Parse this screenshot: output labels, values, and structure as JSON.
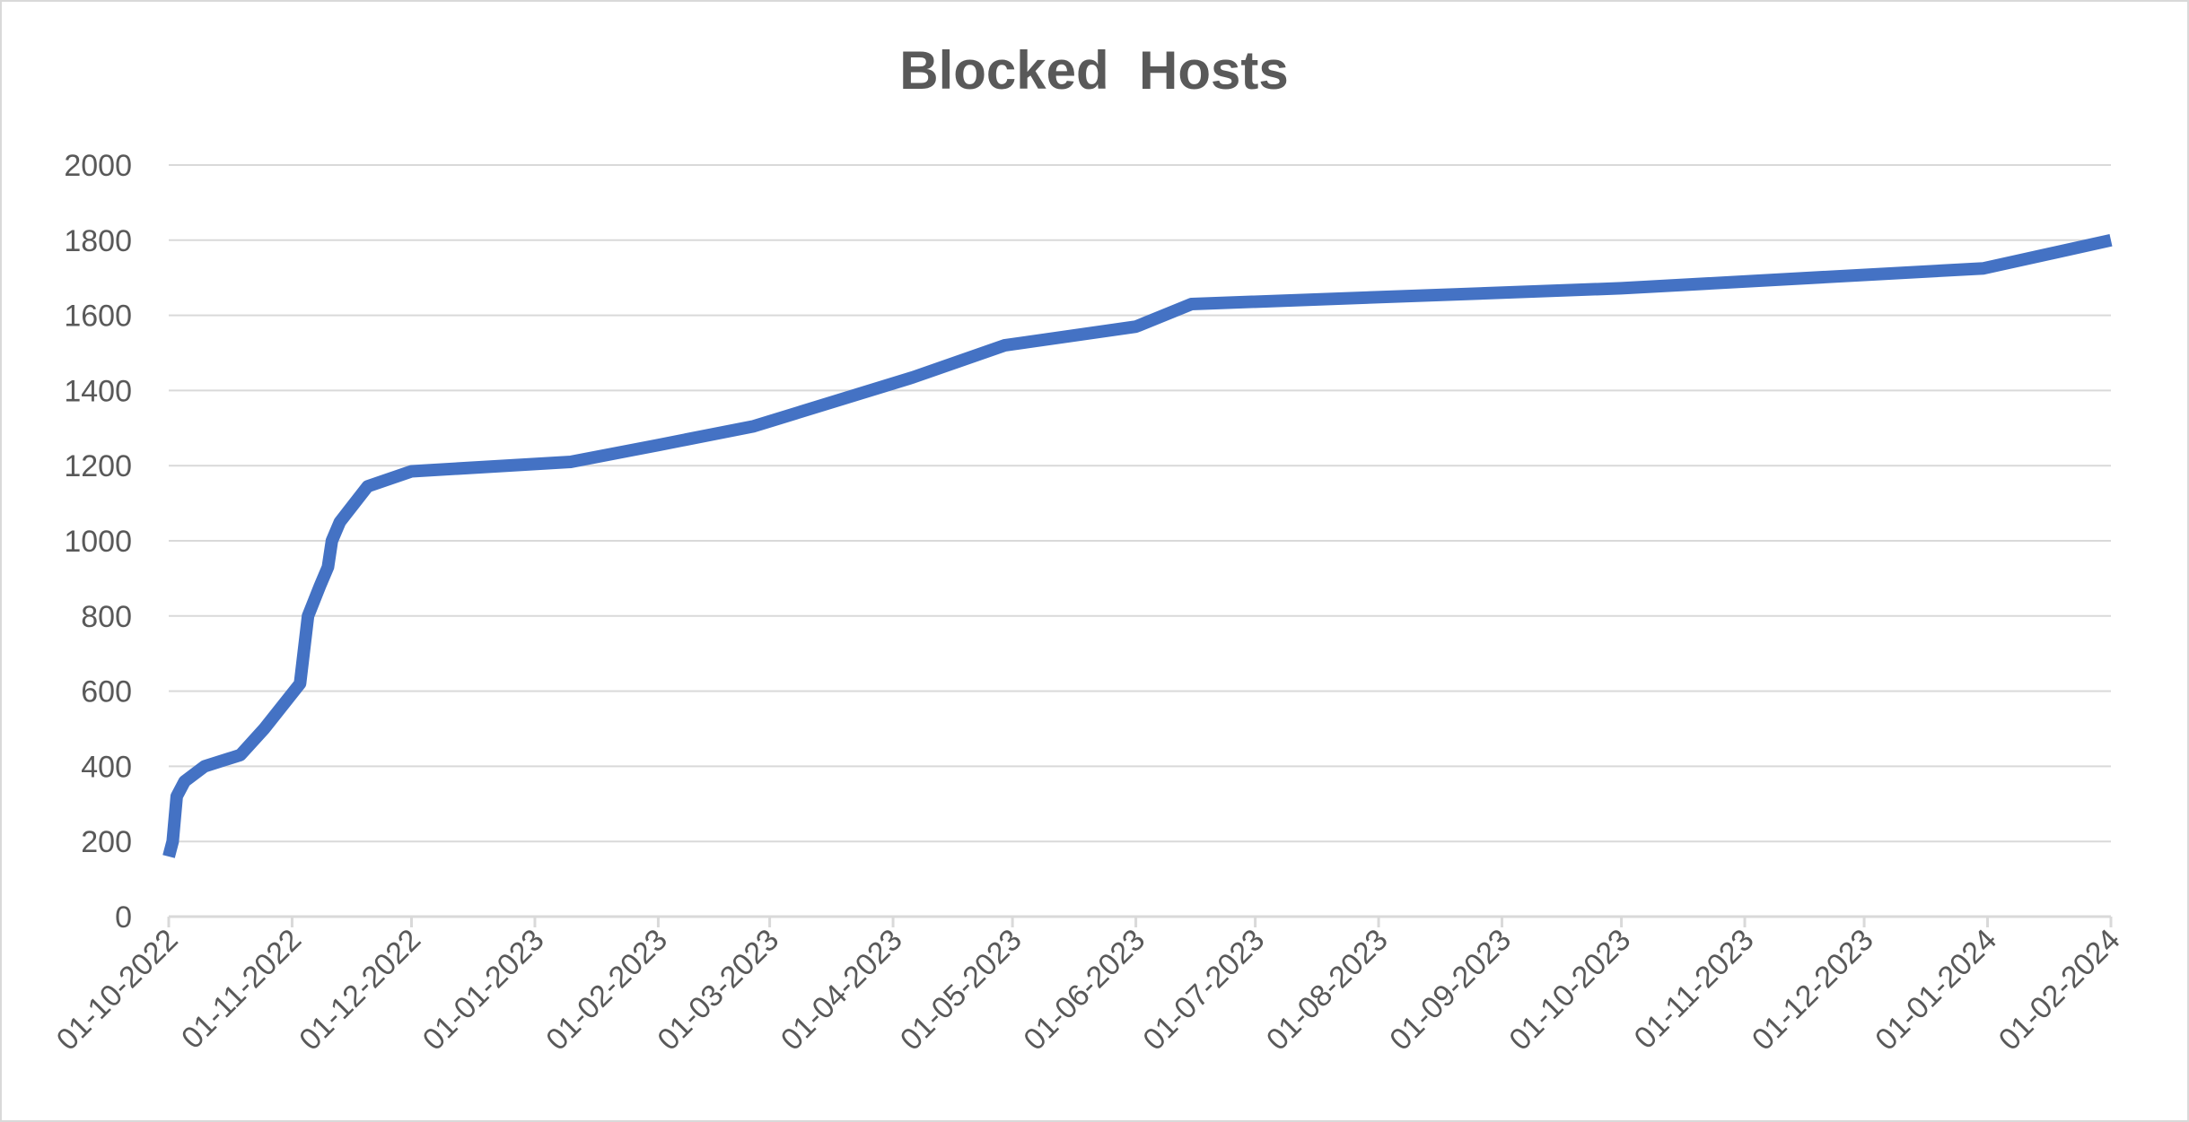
{
  "chart_data": {
    "type": "line",
    "title": "Blocked  Hosts",
    "xlabel": "",
    "ylabel": "",
    "ylim": [
      0,
      2000
    ],
    "y_ticks": [
      0,
      200,
      400,
      600,
      800,
      1000,
      1200,
      1400,
      1600,
      1800,
      2000
    ],
    "x_range": [
      "2022-10-01",
      "2024-02-01"
    ],
    "x_tick_labels": [
      "01-10-2022",
      "01-11-2022",
      "01-12-2022",
      "01-01-2023",
      "01-02-2023",
      "01-03-2023",
      "01-04-2023",
      "01-05-2023",
      "01-06-2023",
      "01-07-2023",
      "01-08-2023",
      "01-09-2023",
      "01-10-2023",
      "01-11-2023",
      "01-12-2023",
      "01-01-2024",
      "01-02-2024"
    ],
    "grid": true,
    "legend": "none",
    "series": [
      {
        "color": "#4472C4",
        "points": [
          {
            "x": "2022-10-01",
            "y": 160
          },
          {
            "x": "2022-10-02",
            "y": 200
          },
          {
            "x": "2022-10-03",
            "y": 320
          },
          {
            "x": "2022-10-05",
            "y": 360
          },
          {
            "x": "2022-10-10",
            "y": 400
          },
          {
            "x": "2022-10-19",
            "y": 430
          },
          {
            "x": "2022-10-25",
            "y": 500
          },
          {
            "x": "2022-11-03",
            "y": 620
          },
          {
            "x": "2022-11-05",
            "y": 800
          },
          {
            "x": "2022-11-08",
            "y": 880
          },
          {
            "x": "2022-11-10",
            "y": 930
          },
          {
            "x": "2022-11-11",
            "y": 1000
          },
          {
            "x": "2022-11-13",
            "y": 1050
          },
          {
            "x": "2022-11-20",
            "y": 1145
          },
          {
            "x": "2022-12-01",
            "y": 1185
          },
          {
            "x": "2023-01-10",
            "y": 1210
          },
          {
            "x": "2023-02-01",
            "y": 1255
          },
          {
            "x": "2023-02-25",
            "y": 1305
          },
          {
            "x": "2023-04-06",
            "y": 1435
          },
          {
            "x": "2023-04-29",
            "y": 1520
          },
          {
            "x": "2023-06-01",
            "y": 1570
          },
          {
            "x": "2023-06-15",
            "y": 1630
          },
          {
            "x": "2023-10-01",
            "y": 1672
          },
          {
            "x": "2023-12-31",
            "y": 1725
          },
          {
            "x": "2024-02-01",
            "y": 1800
          }
        ]
      }
    ]
  }
}
